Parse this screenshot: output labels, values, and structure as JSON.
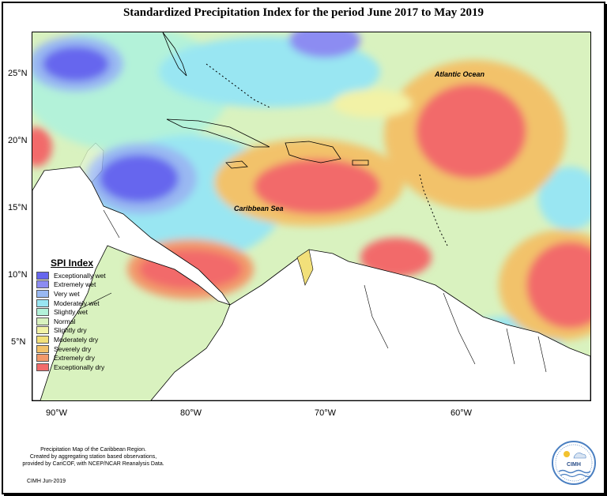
{
  "title": "Standardized Precipitation Index for the period June 2017 to May 2019",
  "map": {
    "lat_labels": [
      "25°N",
      "20°N",
      "15°N",
      "10°N",
      "5°N"
    ],
    "lon_labels": [
      "90°W",
      "80°W",
      "70°W",
      "60°W"
    ],
    "places": {
      "atlantic": "Atlantic Ocean",
      "caribbean": "Caribbean Sea"
    }
  },
  "legend": {
    "title": "SPI Index",
    "items": [
      {
        "label": "Exceptionally wet",
        "color": "#6666ee"
      },
      {
        "label": "Extremely wet",
        "color": "#8c8cf2"
      },
      {
        "label": "Very wet",
        "color": "#99b8f2"
      },
      {
        "label": "Moderately wet",
        "color": "#99e6f2"
      },
      {
        "label": "Slightly wet",
        "color": "#b3f2d9"
      },
      {
        "label": "Normal",
        "color": "#d9f2bf"
      },
      {
        "label": "Slightly dry",
        "color": "#f2f2a6"
      },
      {
        "label": "Moderately dry",
        "color": "#f2e07a"
      },
      {
        "label": "Severely dry",
        "color": "#f2c26b"
      },
      {
        "label": "Extremely dry",
        "color": "#f2996b"
      },
      {
        "label": "Exceptionally dry",
        "color": "#f26b6b"
      }
    ]
  },
  "footer": {
    "line1": "Precipitation Map of the Caribbean Region.",
    "line2": "Created by aggregating station based observations,",
    "line3": "provided by CariCOF, with NCEP/NCAR Reanalysis Data.",
    "credit": "CIMH Jun-2019",
    "logo_text": "CIMH"
  }
}
